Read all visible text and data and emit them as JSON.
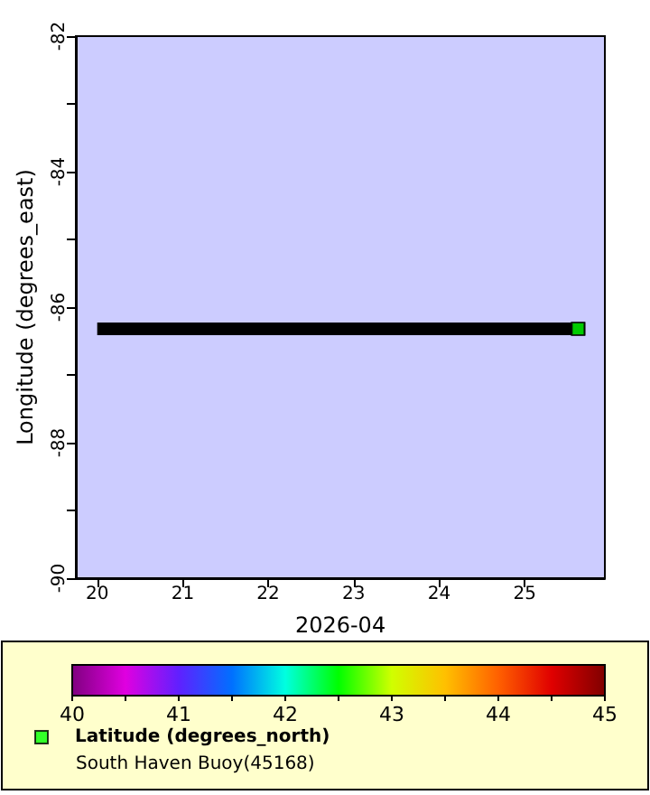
{
  "chart_data": {
    "type": "scatter",
    "xlabel": "2026-04",
    "ylabel": "Longitude (degrees_east)",
    "annotations": [
      "South Haven Buoy(45168)"
    ],
    "xlim": [
      "2026-04-19T18:00",
      "2026-04-25T22:30"
    ],
    "xticks": [
      {
        "value": "2026-04-20T00:00",
        "label": "20"
      },
      {
        "value": "2026-04-21T00:00",
        "label": "21"
      },
      {
        "value": "2026-04-22T00:00",
        "label": "22"
      },
      {
        "value": "2026-04-23T00:00",
        "label": "23"
      },
      {
        "value": "2026-04-24T00:00",
        "label": "24"
      },
      {
        "value": "2026-04-25T00:00",
        "label": "25"
      }
    ],
    "ylim": [
      -90,
      -82
    ],
    "yticks": [
      -90,
      {
        "value": -89,
        "label": null
      },
      -88,
      {
        "value": -87,
        "label": null
      },
      -86,
      {
        "value": -85,
        "label": null
      },
      -84,
      {
        "value": -83,
        "label": null
      },
      -82
    ],
    "clim": [
      40,
      45
    ],
    "cticks": [
      40,
      {
        "value": 40.5,
        "label": null
      },
      41,
      {
        "value": 41.5,
        "label": null
      },
      42,
      {
        "value": 42.5,
        "label": null
      },
      43,
      {
        "value": 43.5,
        "label": null
      },
      44,
      {
        "value": 44.5,
        "label": null
      },
      45
    ],
    "legend": "bottom left",
    "grid": false,
    "series": [
      {
        "type": "line",
        "color": "#000000",
        "line_style": "solid",
        "marker": "none",
        "x": [
          "2026-04-20T00:00",
          "2026-04-25T17:00"
        ],
        "values": [
          -86.32,
          -86.32
        ]
      },
      {
        "name": "Latitude (degrees_north)",
        "color": "#00ff00",
        "marker": "square",
        "x": [
          "2026-04-25T15:00"
        ],
        "values": [
          -86.32
        ],
        "cvalues": [
          42.5
        ]
      }
    ]
  }
}
